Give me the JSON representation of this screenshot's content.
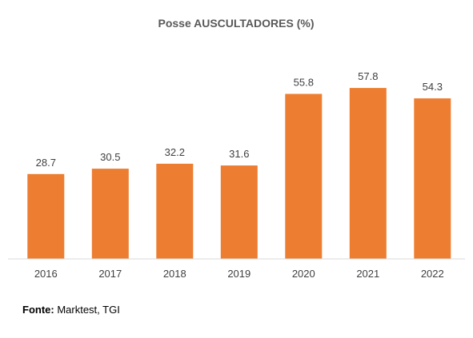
{
  "chart_data": {
    "type": "bar",
    "title": "Posse AUSCULTADORES (%)",
    "xlabel": "",
    "ylabel": "",
    "categories": [
      "2016",
      "2017",
      "2018",
      "2019",
      "2020",
      "2021",
      "2022"
    ],
    "values": [
      28.7,
      30.5,
      32.2,
      31.6,
      55.8,
      57.8,
      54.3
    ],
    "data_labels": [
      "28.7",
      "30.5",
      "32.2",
      "31.6",
      "55.8",
      "57.8",
      "54.3"
    ],
    "ylim": [
      0,
      60
    ],
    "grid": false,
    "legend": "none",
    "colors": {
      "bar": "#ED7D31",
      "title": "#595959",
      "labels": "#404040",
      "axis": "#D9D9D9"
    }
  },
  "source": {
    "label": "Fonte:",
    "text": " Marktest, TGI"
  }
}
